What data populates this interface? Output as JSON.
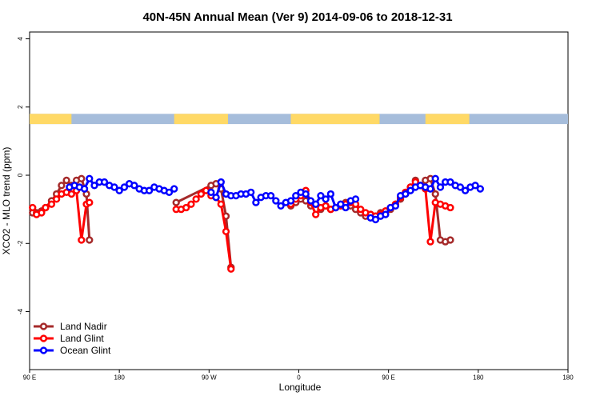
{
  "chart_data": {
    "type": "line",
    "title": "40N-45N Annual Mean (Ver 9)   2014-09-06 to 2018-12-31",
    "xlabel": "Longitude",
    "ylabel": "XCO2 - MLO trend (ppm)",
    "xlim": [
      0,
      540
    ],
    "ylim": [
      -5.7,
      4.2
    ],
    "xticks": [
      {
        "value": 0,
        "label": "90 E"
      },
      {
        "value": 90,
        "label": "180"
      },
      {
        "value": 180,
        "label": "90 W"
      },
      {
        "value": 270,
        "label": "0"
      },
      {
        "value": 360,
        "label": "90 E"
      },
      {
        "value": 450,
        "label": "180"
      }
    ],
    "yticks": [
      {
        "value": 4,
        "label": "4"
      },
      {
        "value": 2,
        "label": "2"
      },
      {
        "value": 0,
        "label": "0"
      },
      {
        "value": -2,
        "label": "-2"
      },
      {
        "value": -4,
        "label": "-4"
      }
    ],
    "grid": false,
    "legend_position": "bottom-left",
    "surface_band": {
      "y_range": [
        1.5,
        1.8
      ],
      "land_color": "#FFD966",
      "ocean_color": "#A6BDDB",
      "land_ranges": [
        [
          0,
          42
        ],
        [
          145,
          199
        ],
        [
          262,
          351
        ],
        [
          397,
          441
        ]
      ]
    },
    "series": [
      {
        "name": "Land Nadir",
        "color": "#A52A2A",
        "segments": [
          {
            "x": [
              3,
              7,
              12,
              16,
              22,
              27,
              32,
              37,
              42,
              47,
              52,
              57,
              60
            ],
            "y": [
              -1.1,
              -1.1,
              -1.05,
              -0.95,
              -0.75,
              -0.55,
              -0.3,
              -0.15,
              -0.3,
              -0.15,
              -0.1,
              -0.55,
              -1.9
            ]
          },
          {
            "x": [
              147,
              182,
              187,
              192,
              197,
              202
            ],
            "y": [
              -0.8,
              -0.3,
              -0.25,
              -0.4,
              -1.2,
              -2.7
            ]
          },
          {
            "x": [
              262,
              267,
              272,
              277,
              282,
              287,
              292,
              297,
              302,
              307,
              312,
              317,
              322,
              327,
              332,
              337,
              342,
              347,
              352,
              357,
              362,
              367,
              372,
              377,
              382,
              387,
              392,
              397,
              402,
              407,
              412,
              417,
              422
            ],
            "y": [
              -0.9,
              -0.8,
              -0.7,
              -0.75,
              -0.9,
              -0.85,
              -1.0,
              -0.9,
              -1.0,
              -0.95,
              -0.85,
              -0.8,
              -0.9,
              -1.0,
              -1.1,
              -1.2,
              -1.15,
              -1.2,
              -1.1,
              -1.05,
              -1.0,
              -0.85,
              -0.7,
              -0.55,
              -0.35,
              -0.15,
              -0.3,
              -0.15,
              -0.1,
              -0.55,
              -1.9,
              -1.95,
              -1.9
            ]
          }
        ]
      },
      {
        "name": "Land Glint",
        "color": "#FF0000",
        "segments": [
          {
            "x": [
              3,
              7,
              12,
              16,
              22,
              27,
              32,
              37,
              42,
              47,
              52,
              57,
              60
            ],
            "y": [
              -0.95,
              -1.15,
              -1.1,
              -0.95,
              -0.85,
              -0.7,
              -0.55,
              -0.5,
              -0.55,
              -0.45,
              -1.9,
              -0.85,
              -0.8
            ]
          },
          {
            "x": [
              147,
              152,
              157,
              162,
              167,
              172,
              177,
              182,
              187,
              192,
              197,
              202
            ],
            "y": [
              -1.0,
              -1.0,
              -0.95,
              -0.85,
              -0.7,
              -0.55,
              -0.45,
              -0.6,
              -0.65,
              -0.85,
              -1.65,
              -2.75
            ]
          },
          {
            "x": [
              262,
              267,
              272,
              277,
              282,
              287,
              292,
              297,
              302,
              307,
              312,
              317,
              322,
              327,
              332,
              337,
              342,
              347,
              352,
              357,
              362,
              367,
              372,
              377,
              382,
              387,
              392,
              397,
              402,
              407,
              412,
              417,
              422
            ],
            "y": [
              -0.85,
              -0.7,
              -0.6,
              -0.45,
              -0.8,
              -1.15,
              -0.95,
              -0.9,
              -1.0,
              -0.95,
              -0.9,
              -0.85,
              -0.8,
              -0.85,
              -1.0,
              -1.1,
              -1.15,
              -1.2,
              -1.15,
              -1.05,
              -0.95,
              -0.85,
              -0.65,
              -0.5,
              -0.35,
              -0.2,
              -0.3,
              -0.4,
              -1.95,
              -0.8,
              -0.85,
              -0.9,
              -0.95
            ]
          }
        ]
      },
      {
        "name": "Ocean Glint",
        "color": "#0000FF",
        "segments": [
          {
            "x": [
              40,
              45,
              50,
              55,
              60,
              65,
              70,
              75,
              80,
              85,
              90,
              95,
              100,
              105,
              110,
              115,
              120,
              125,
              130,
              135,
              140,
              145
            ],
            "y": [
              -0.35,
              -0.3,
              -0.35,
              -0.4,
              -0.1,
              -0.3,
              -0.2,
              -0.2,
              -0.3,
              -0.35,
              -0.45,
              -0.35,
              -0.25,
              -0.3,
              -0.4,
              -0.45,
              -0.45,
              -0.35,
              -0.4,
              -0.45,
              -0.5,
              -0.4
            ]
          },
          {
            "x": [
              182,
              187,
              192,
              197,
              202,
              207,
              212,
              217,
              222,
              227,
              232,
              237,
              242,
              247,
              252,
              257,
              262,
              267,
              272,
              277,
              282,
              287,
              292,
              297,
              302,
              307,
              312,
              317,
              322,
              327
            ],
            "y": [
              -0.5,
              -0.65,
              -0.2,
              -0.55,
              -0.6,
              -0.6,
              -0.55,
              -0.55,
              -0.5,
              -0.8,
              -0.65,
              -0.6,
              -0.6,
              -0.75,
              -0.9,
              -0.8,
              -0.75,
              -0.6,
              -0.5,
              -0.55,
              -0.75,
              -0.85,
              -0.6,
              -0.7,
              -0.55,
              -0.95,
              -0.85,
              -0.95,
              -0.75,
              -0.7
            ]
          },
          {
            "x": [
              342,
              347,
              352,
              357,
              362,
              367,
              372,
              377,
              382,
              387,
              392,
              397,
              402,
              407,
              412,
              417,
              422,
              427,
              432,
              437,
              442,
              447,
              452
            ],
            "y": [
              -1.25,
              -1.3,
              -1.2,
              -1.15,
              -0.95,
              -0.9,
              -0.6,
              -0.55,
              -0.45,
              -0.35,
              -0.3,
              -0.35,
              -0.4,
              -0.1,
              -0.35,
              -0.2,
              -0.2,
              -0.3,
              -0.35,
              -0.45,
              -0.35,
              -0.3,
              -0.4
            ]
          }
        ]
      }
    ]
  }
}
